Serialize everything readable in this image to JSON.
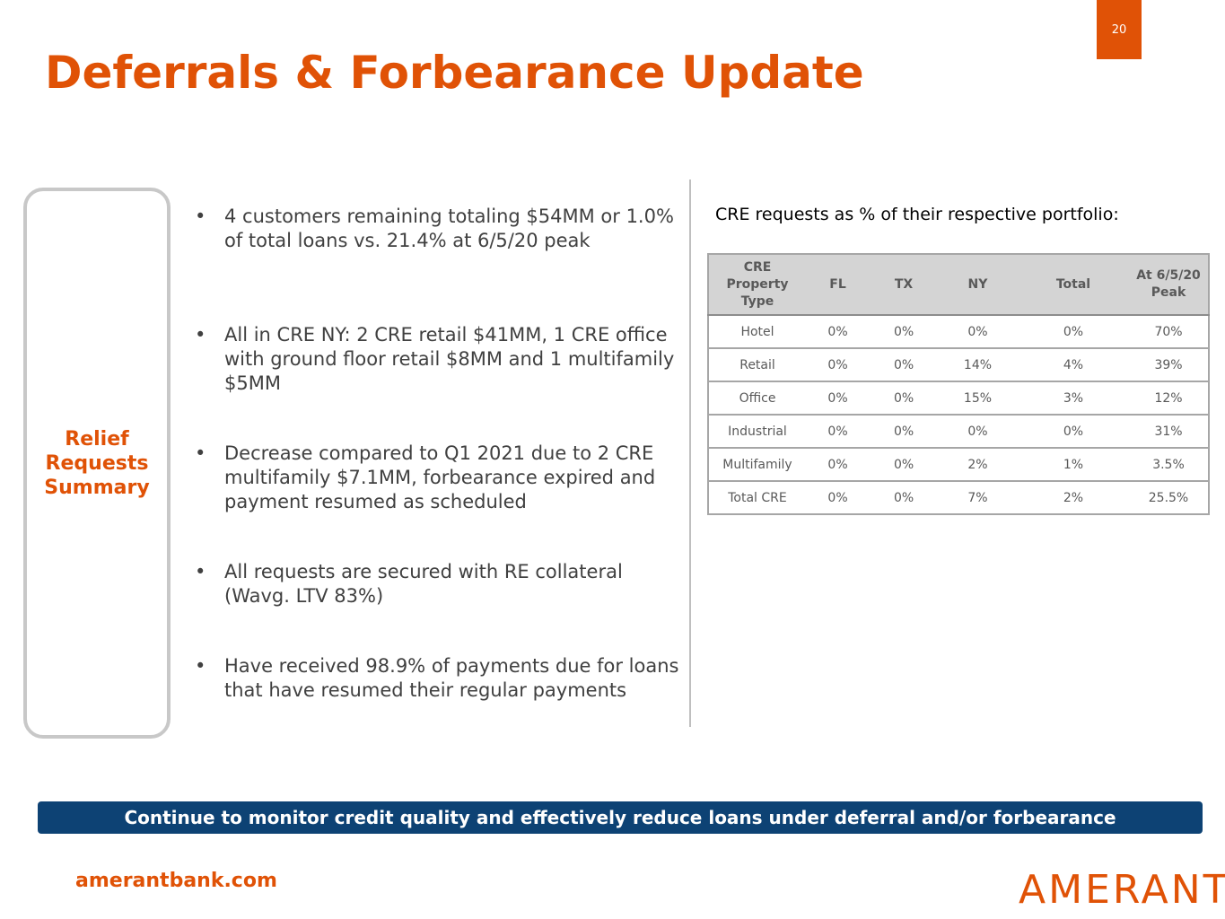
{
  "page_number": "20",
  "title": "Deferrals & Forbearance Update",
  "side_label": "Relief Requests Summary",
  "bullets": [
    "4 customers remaining totaling $54MM or 1.0% of total loans vs. 21.4% at 6/5/20 peak",
    "All in CRE NY: 2 CRE retail $41MM, 1 CRE office with ground floor retail $8MM and 1 multifamily $5MM",
    "Decrease compared to Q1 2021 due to 2 CRE multifamily $7.1MM, forbearance expired and payment resumed as scheduled",
    "All requests are secured with RE collateral (Wavg. LTV 83%)",
    "Have received 98.9% of payments due for loans that have resumed their regular payments"
  ],
  "table_caption": "CRE requests as % of their respective portfolio:",
  "table": {
    "header": [
      "CRE Property Type",
      "FL",
      "TX",
      "NY",
      "Total",
      "At 6/5/20 Peak"
    ],
    "rows": [
      [
        "Hotel",
        "0%",
        "0%",
        "0%",
        "0%",
        "70%"
      ],
      [
        "Retail",
        "0%",
        "0%",
        "14%",
        "4%",
        "39%"
      ],
      [
        "Office",
        "0%",
        "0%",
        "15%",
        "3%",
        "12%"
      ],
      [
        "Industrial",
        "0%",
        "0%",
        "0%",
        "0%",
        "31%"
      ],
      [
        "Multifamily",
        "0%",
        "0%",
        "2%",
        "1%",
        "3.5%"
      ],
      [
        "Total CRE",
        "0%",
        "0%",
        "7%",
        "2%",
        "25.5%"
      ]
    ]
  },
  "banner": "Continue to monitor credit quality and effectively reduce loans under deferral and/or forbearance",
  "footer": {
    "website": "amerantbank.com",
    "logo": "AMERANT"
  }
}
